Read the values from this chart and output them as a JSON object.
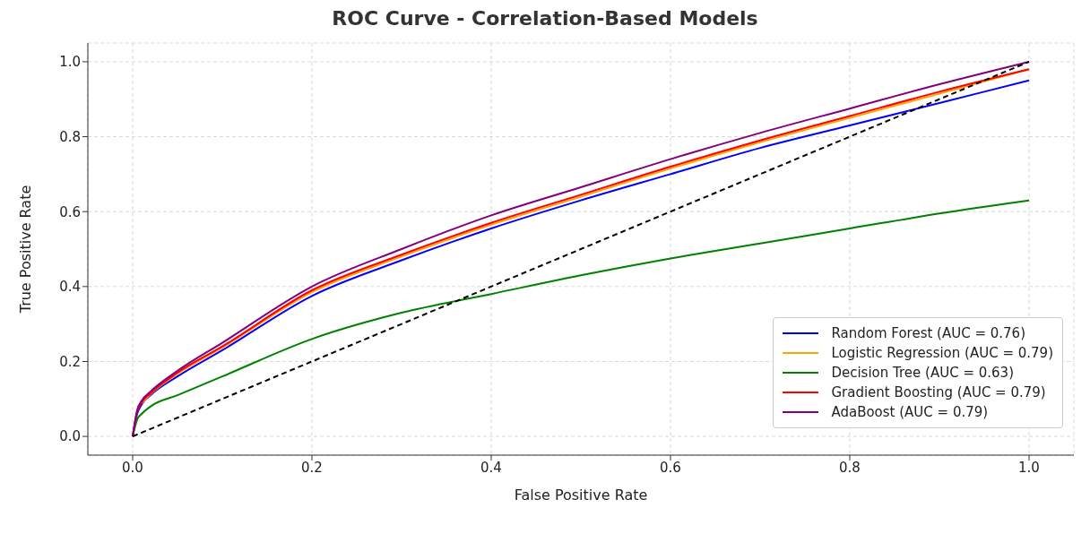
{
  "chart_data": {
    "type": "line",
    "title": "ROC Curve - Correlation-Based Models",
    "xlabel": "False Positive Rate",
    "ylabel": "True Positive Rate",
    "x": [
      0,
      0.005,
      0.01,
      0.02,
      0.05,
      0.1,
      0.2,
      0.3,
      0.4,
      0.5,
      0.6,
      0.7,
      0.8,
      0.9,
      1.0
    ],
    "series": [
      {
        "name": "Random Forest (AUC = 0.76)",
        "color": "#0000ff",
        "values": [
          0,
          0.06,
          0.085,
          0.11,
          0.16,
          0.23,
          0.375,
          0.47,
          0.555,
          0.63,
          0.7,
          0.77,
          0.83,
          0.89,
          0.95
        ]
      },
      {
        "name": "Logistic Regression (AUC = 0.79)",
        "color": "#ffa500",
        "values": [
          null,
          null,
          0.088,
          0.113,
          0.167,
          0.237,
          0.385,
          0.48,
          0.565,
          0.64,
          0.715,
          0.785,
          0.85,
          0.915,
          0.98
        ]
      },
      {
        "name": "Decision Tree (AUC = 0.63)",
        "color": "#008000",
        "values": [
          0,
          0.045,
          0.06,
          0.08,
          0.11,
          0.16,
          0.26,
          0.33,
          0.38,
          0.43,
          0.475,
          0.515,
          0.555,
          0.595,
          0.63
        ]
      },
      {
        "name": "Gradient Boosting (AUC = 0.79)",
        "color": "#ff0000",
        "values": [
          0,
          0.065,
          0.09,
          0.115,
          0.17,
          0.24,
          0.39,
          0.485,
          0.57,
          0.645,
          0.72,
          0.79,
          0.855,
          0.92,
          0.98
        ]
      },
      {
        "name": "AdaBoost (AUC = 0.79)",
        "color": "#800080",
        "values": [
          0,
          0.07,
          0.095,
          0.12,
          0.175,
          0.25,
          0.4,
          0.5,
          0.59,
          0.665,
          0.74,
          0.81,
          0.875,
          0.94,
          1.0
        ]
      },
      {
        "color": "#000000",
        "line_style": "dashed",
        "x": [
          0,
          1
        ],
        "values": [
          0,
          1
        ]
      }
    ],
    "xlim": [
      -0.05,
      1.05
    ],
    "ylim": [
      -0.05,
      1.05
    ],
    "xticks": [
      {
        "value": 0,
        "label": "0.0"
      },
      {
        "value": 0.2,
        "label": "0.2"
      },
      {
        "value": 0.4,
        "label": "0.4"
      },
      {
        "value": 0.6,
        "label": "0.6"
      },
      {
        "value": 0.8,
        "label": "0.8"
      },
      {
        "value": 1,
        "label": "1.0"
      }
    ],
    "yticks": [
      {
        "value": 0,
        "label": "0.0"
      },
      {
        "value": 0.2,
        "label": "0.2"
      },
      {
        "value": 0.4,
        "label": "0.4"
      },
      {
        "value": 0.6,
        "label": "0.6"
      },
      {
        "value": 0.8,
        "label": "0.8"
      },
      {
        "value": 1,
        "label": "1.0"
      }
    ],
    "grid": true,
    "legend": "bottom right",
    "marker": "none"
  }
}
